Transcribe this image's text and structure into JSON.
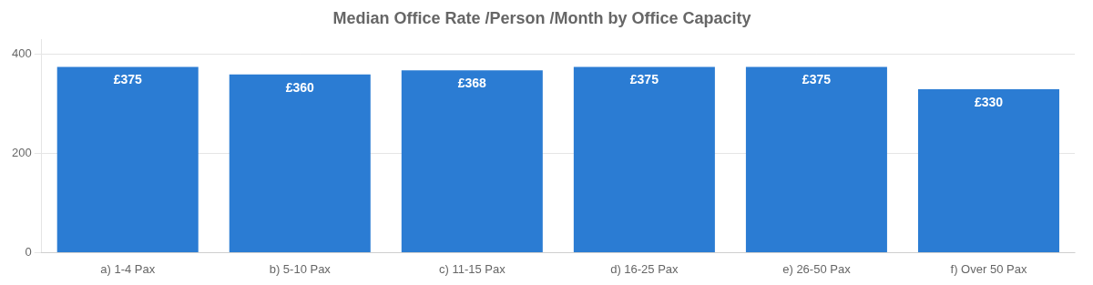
{
  "chart_data": {
    "type": "bar",
    "title": "Median Office Rate /Person /Month by Office Capacity",
    "categories": [
      "a) 1-4 Pax",
      "b) 5-10 Pax",
      "c) 11-15 Pax",
      "d) 16-25 Pax",
      "e) 26-50 Pax",
      "f) Over 50 Pax"
    ],
    "values": [
      375,
      360,
      368,
      375,
      375,
      330
    ],
    "value_labels": [
      "£375",
      "£360",
      "£368",
      "£375",
      "£375",
      "£330"
    ],
    "color": "#2B7CD3",
    "ylim": [
      0,
      430
    ],
    "yticks": [
      0,
      200,
      400
    ],
    "grid": true,
    "data_labels": true
  }
}
